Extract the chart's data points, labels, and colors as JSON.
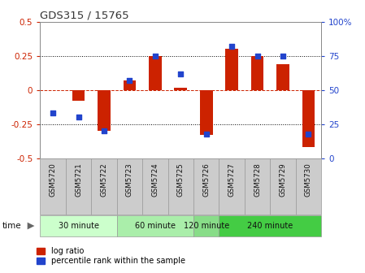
{
  "title": "GDS315 / 15765",
  "samples": [
    "GSM5720",
    "GSM5721",
    "GSM5722",
    "GSM5723",
    "GSM5724",
    "GSM5725",
    "GSM5726",
    "GSM5727",
    "GSM5728",
    "GSM5729",
    "GSM5730"
  ],
  "log_ratio": [
    0.0,
    -0.08,
    -0.3,
    0.07,
    0.25,
    0.02,
    -0.33,
    0.3,
    0.25,
    0.19,
    -0.42
  ],
  "percentile": [
    33,
    30,
    20,
    57,
    75,
    62,
    18,
    82,
    75,
    75,
    18
  ],
  "ylim_left": [
    -0.5,
    0.5
  ],
  "ylim_right": [
    0,
    100
  ],
  "yticks_left": [
    -0.5,
    -0.25,
    0.0,
    0.25,
    0.5
  ],
  "yticks_right": [
    0,
    25,
    50,
    75,
    100
  ],
  "bar_color": "#cc2200",
  "scatter_color": "#2244cc",
  "hline_color": "#cc2200",
  "dotted_color": "#000000",
  "groups": [
    {
      "label": "30 minute",
      "start": 0,
      "end": 3,
      "color": "#ccffcc"
    },
    {
      "label": "60 minute",
      "start": 3,
      "end": 6,
      "color": "#aaeeaa"
    },
    {
      "label": "120 minute",
      "start": 6,
      "end": 7,
      "color": "#88dd88"
    },
    {
      "label": "240 minute",
      "start": 7,
      "end": 11,
      "color": "#44cc44"
    }
  ],
  "time_label": "time",
  "legend_bar_label": "log ratio",
  "legend_scatter_label": "percentile rank within the sample",
  "background_color": "#ffffff",
  "plot_bg_color": "#ffffff",
  "tick_label_color_left": "#cc2200",
  "tick_label_color_right": "#2244cc",
  "cell_bg_color": "#cccccc",
  "cell_edge_color": "#999999"
}
